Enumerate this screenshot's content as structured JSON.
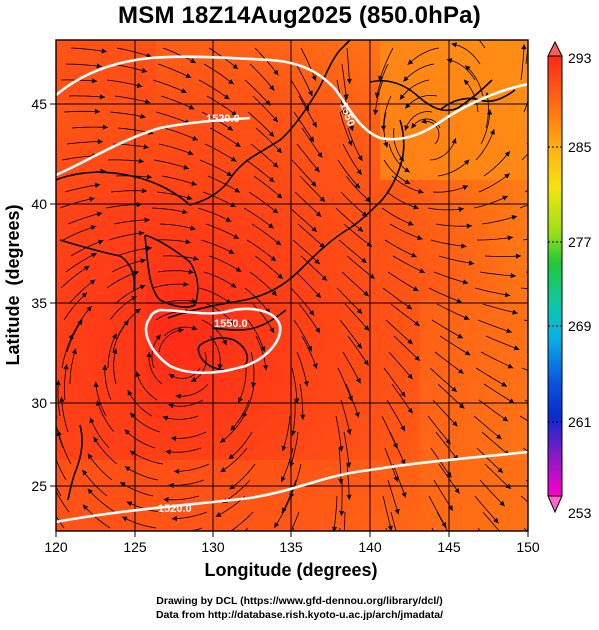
{
  "title": "MSM 18Z14Aug2025 (850.0hPa)",
  "x_axis": {
    "label": "Longitude (degrees)",
    "ticks": [
      "120",
      "125",
      "130",
      "135",
      "140",
      "145",
      "150"
    ]
  },
  "y_axis": {
    "label": "Latitude  (degrees)",
    "ticks": [
      "25",
      "30",
      "35",
      "40",
      "45"
    ]
  },
  "colorbar": {
    "ticks": [
      "293",
      "285",
      "277",
      "269",
      "261",
      "253"
    ],
    "colors": [
      "#ff00c8",
      "#7a1cc8",
      "#0a2bcf",
      "#0aa6e6",
      "#11c9a5",
      "#1ec84a",
      "#7ee01b",
      "#d8ef12",
      "#ffcf12",
      "#ff9a12",
      "#ff5a16",
      "#ff2a17"
    ]
  },
  "contours": [
    {
      "label": "1520.0"
    },
    {
      "label": "1550.0"
    },
    {
      "label": "1520.0"
    },
    {
      "label": "1550"
    }
  ],
  "credits": {
    "line1": "Drawing by DCL (https://www.gfd-dennou.org/library/dcl/)",
    "line2": "Data from http://database.rish.kyoto-u.ac.jp/arch/jmadata/"
  }
}
